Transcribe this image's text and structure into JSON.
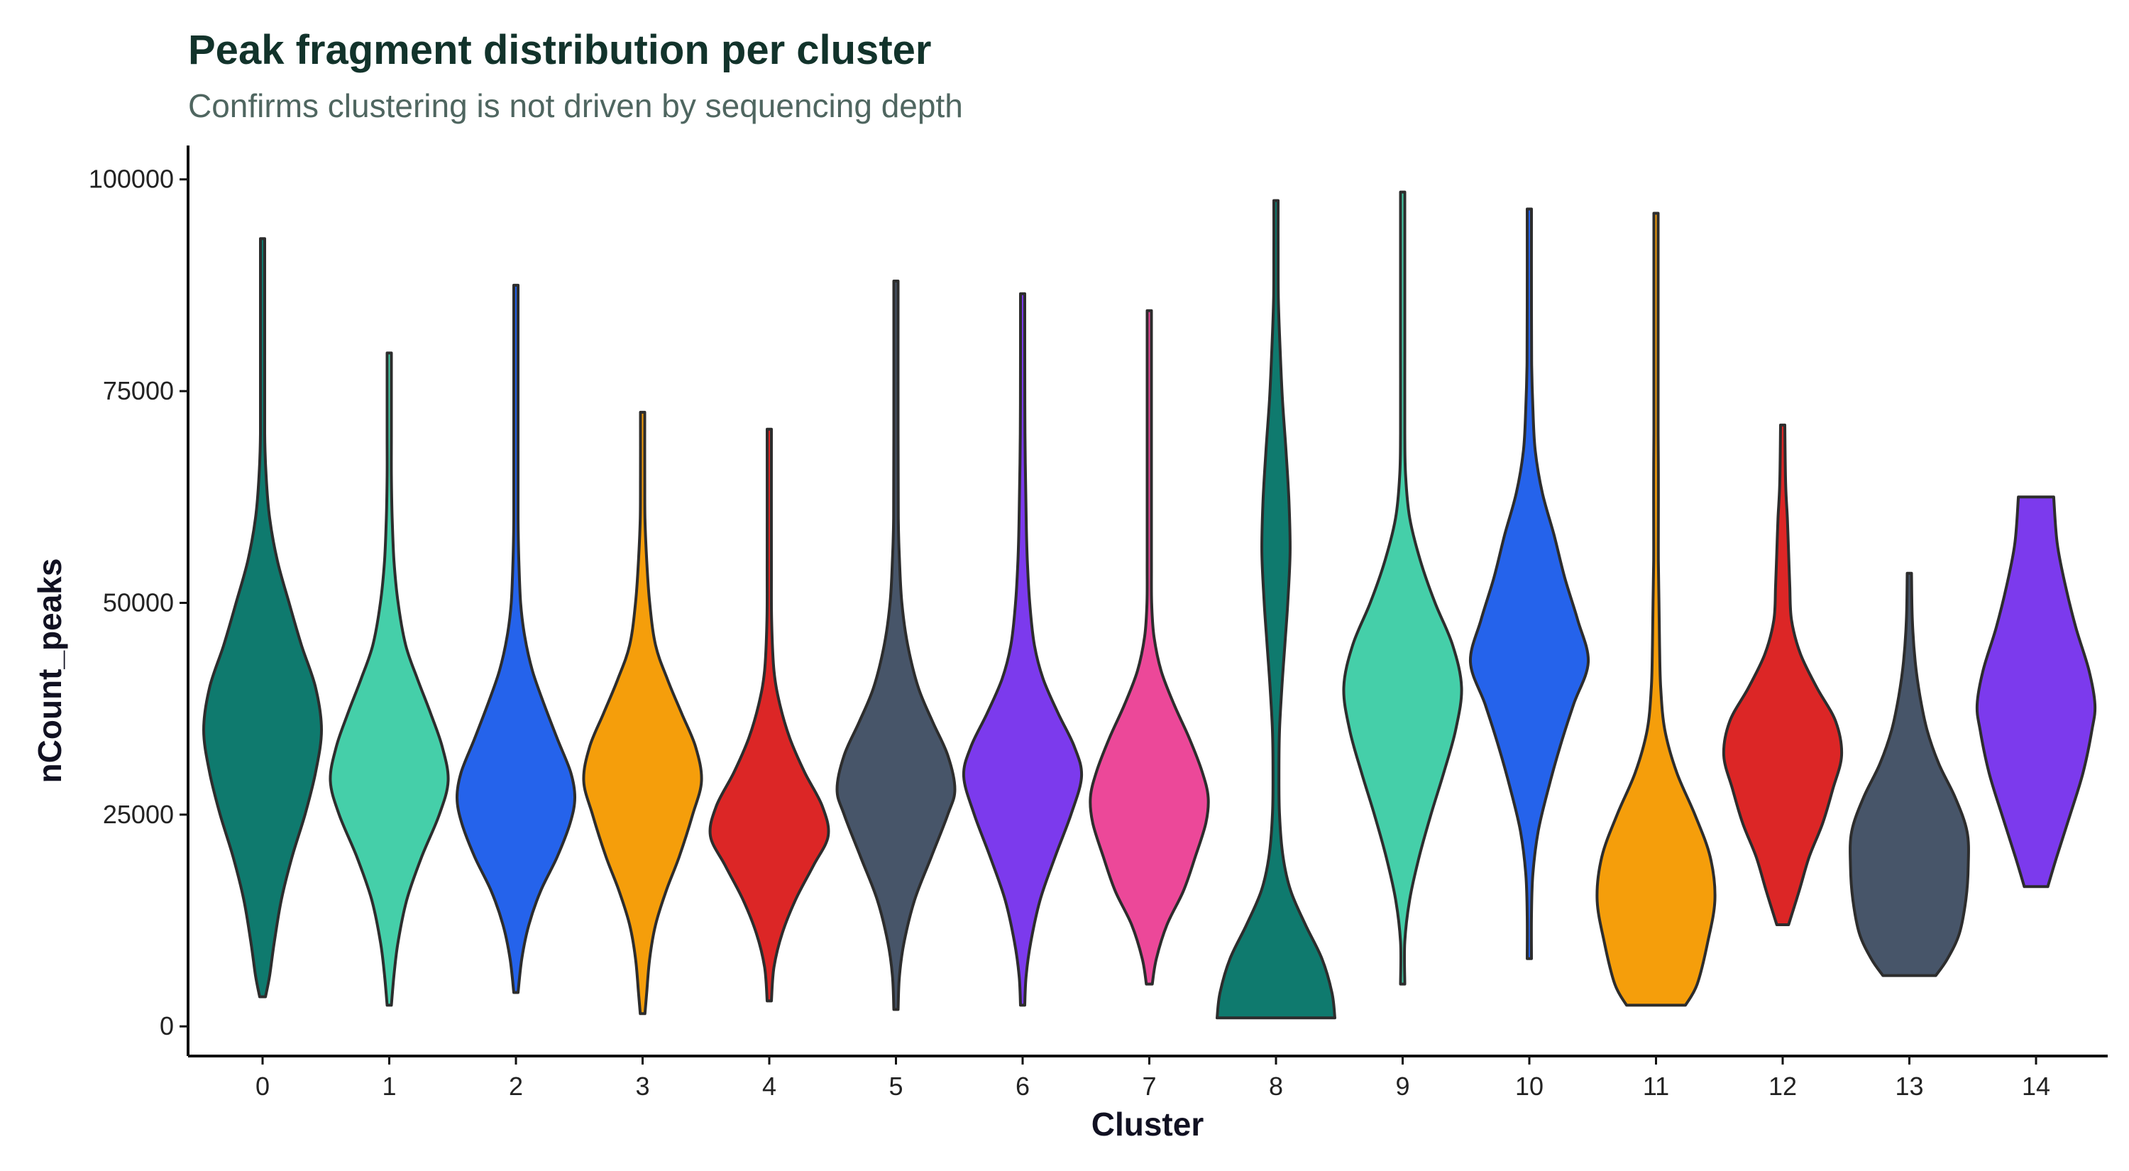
{
  "chart_data": {
    "type": "violin",
    "title": "Peak fragment distribution per cluster",
    "subtitle": "Confirms clustering is not driven by sequencing depth",
    "xlabel": "Cluster",
    "ylabel": "nCount_peaks",
    "ylim": [
      -3500,
      104000
    ],
    "yticks": [
      0,
      25000,
      50000,
      75000,
      100000
    ],
    "ytick_labels": [
      "0",
      "25000",
      "50000",
      "75000",
      "100000"
    ],
    "grid": false,
    "legend": "none",
    "categories": [
      "0",
      "1",
      "2",
      "3",
      "4",
      "5",
      "6",
      "7",
      "8",
      "9",
      "10",
      "11",
      "12",
      "13",
      "14"
    ],
    "violins": [
      {
        "cluster": "0",
        "color": "#0f7a6e",
        "min": 3500,
        "max": 93000,
        "profile": [
          [
            3500,
            0.05
          ],
          [
            6000,
            0.12
          ],
          [
            10000,
            0.2
          ],
          [
            15000,
            0.32
          ],
          [
            20000,
            0.5
          ],
          [
            25000,
            0.72
          ],
          [
            30000,
            0.9
          ],
          [
            35000,
            1.0
          ],
          [
            40000,
            0.9
          ],
          [
            45000,
            0.66
          ],
          [
            50000,
            0.45
          ],
          [
            55000,
            0.25
          ],
          [
            60000,
            0.12
          ],
          [
            65000,
            0.06
          ],
          [
            70000,
            0.03
          ],
          [
            80000,
            0.02
          ],
          [
            93000,
            0.015
          ]
        ]
      },
      {
        "cluster": "1",
        "color": "#45cfa9",
        "min": 2500,
        "max": 79500,
        "profile": [
          [
            2500,
            0.03
          ],
          [
            6000,
            0.08
          ],
          [
            10000,
            0.15
          ],
          [
            15000,
            0.3
          ],
          [
            20000,
            0.55
          ],
          [
            25000,
            0.85
          ],
          [
            29000,
            1.0
          ],
          [
            33000,
            0.9
          ],
          [
            37000,
            0.7
          ],
          [
            41000,
            0.48
          ],
          [
            45000,
            0.28
          ],
          [
            50000,
            0.15
          ],
          [
            55000,
            0.08
          ],
          [
            60000,
            0.05
          ],
          [
            65000,
            0.03
          ],
          [
            70000,
            0.02
          ],
          [
            79500,
            0.01
          ]
        ]
      },
      {
        "cluster": "2",
        "color": "#2563eb",
        "min": 4000,
        "max": 87500,
        "profile": [
          [
            4000,
            0.03
          ],
          [
            8000,
            0.1
          ],
          [
            12000,
            0.22
          ],
          [
            16000,
            0.42
          ],
          [
            20000,
            0.7
          ],
          [
            24000,
            0.92
          ],
          [
            27000,
            1.0
          ],
          [
            30000,
            0.93
          ],
          [
            34000,
            0.7
          ],
          [
            38000,
            0.48
          ],
          [
            42000,
            0.28
          ],
          [
            46000,
            0.15
          ],
          [
            50000,
            0.08
          ],
          [
            55000,
            0.05
          ],
          [
            60000,
            0.03
          ],
          [
            70000,
            0.02
          ],
          [
            87500,
            0.01
          ]
        ]
      },
      {
        "cluster": "3",
        "color": "#f59e0b",
        "min": 1500,
        "max": 72500,
        "profile": [
          [
            1500,
            0.04
          ],
          [
            4000,
            0.07
          ],
          [
            8000,
            0.12
          ],
          [
            12000,
            0.22
          ],
          [
            16000,
            0.4
          ],
          [
            20000,
            0.62
          ],
          [
            25000,
            0.85
          ],
          [
            29000,
            1.0
          ],
          [
            33000,
            0.9
          ],
          [
            37000,
            0.66
          ],
          [
            41000,
            0.42
          ],
          [
            45000,
            0.22
          ],
          [
            50000,
            0.12
          ],
          [
            55000,
            0.07
          ],
          [
            60000,
            0.04
          ],
          [
            65000,
            0.02
          ],
          [
            72500,
            0.01
          ]
        ]
      },
      {
        "cluster": "4",
        "color": "#dc2626",
        "min": 3000,
        "max": 70500,
        "profile": [
          [
            3000,
            0.03
          ],
          [
            7000,
            0.08
          ],
          [
            11000,
            0.22
          ],
          [
            15000,
            0.45
          ],
          [
            19000,
            0.75
          ],
          [
            22500,
            1.0
          ],
          [
            26000,
            0.9
          ],
          [
            30000,
            0.6
          ],
          [
            34000,
            0.35
          ],
          [
            38000,
            0.18
          ],
          [
            42000,
            0.08
          ],
          [
            48000,
            0.04
          ],
          [
            55000,
            0.02
          ],
          [
            70500,
            0.01
          ]
        ]
      },
      {
        "cluster": "5",
        "color": "#475569",
        "min": 2000,
        "max": 88000,
        "profile": [
          [
            2000,
            0.02
          ],
          [
            6000,
            0.06
          ],
          [
            10000,
            0.14
          ],
          [
            15000,
            0.32
          ],
          [
            20000,
            0.6
          ],
          [
            25000,
            0.88
          ],
          [
            28000,
            1.0
          ],
          [
            32000,
            0.88
          ],
          [
            36000,
            0.62
          ],
          [
            40000,
            0.38
          ],
          [
            45000,
            0.2
          ],
          [
            50000,
            0.1
          ],
          [
            55000,
            0.06
          ],
          [
            60000,
            0.04
          ],
          [
            70000,
            0.02
          ],
          [
            88000,
            0.01
          ]
        ]
      },
      {
        "cluster": "6",
        "color": "#7c3aed",
        "min": 2500,
        "max": 86500,
        "profile": [
          [
            2500,
            0.02
          ],
          [
            6000,
            0.06
          ],
          [
            10000,
            0.14
          ],
          [
            15000,
            0.3
          ],
          [
            20000,
            0.55
          ],
          [
            25000,
            0.82
          ],
          [
            29500,
            1.0
          ],
          [
            33000,
            0.88
          ],
          [
            37000,
            0.6
          ],
          [
            41000,
            0.35
          ],
          [
            45000,
            0.2
          ],
          [
            50000,
            0.12
          ],
          [
            55000,
            0.08
          ],
          [
            60000,
            0.06
          ],
          [
            70000,
            0.04
          ],
          [
            80000,
            0.02
          ],
          [
            86500,
            0.01
          ]
        ]
      },
      {
        "cluster": "7",
        "color": "#ec4899",
        "min": 5000,
        "max": 84500,
        "profile": [
          [
            5000,
            0.05
          ],
          [
            8000,
            0.12
          ],
          [
            12000,
            0.3
          ],
          [
            16000,
            0.58
          ],
          [
            20000,
            0.78
          ],
          [
            24000,
            0.96
          ],
          [
            27000,
            1.0
          ],
          [
            30000,
            0.9
          ],
          [
            34000,
            0.68
          ],
          [
            38000,
            0.42
          ],
          [
            42000,
            0.2
          ],
          [
            46000,
            0.08
          ],
          [
            50000,
            0.04
          ],
          [
            55000,
            0.03
          ],
          [
            65000,
            0.02
          ],
          [
            84500,
            0.01
          ]
        ]
      },
      {
        "cluster": "8",
        "color": "#0f7a6e",
        "min": 1000,
        "max": 97500,
        "profile": [
          [
            1000,
            1.0
          ],
          [
            4000,
            0.95
          ],
          [
            8000,
            0.78
          ],
          [
            12000,
            0.5
          ],
          [
            16000,
            0.25
          ],
          [
            20000,
            0.12
          ],
          [
            25000,
            0.06
          ],
          [
            30000,
            0.05
          ],
          [
            35000,
            0.06
          ],
          [
            40000,
            0.1
          ],
          [
            45000,
            0.15
          ],
          [
            50000,
            0.2
          ],
          [
            56000,
            0.24
          ],
          [
            62000,
            0.22
          ],
          [
            68000,
            0.17
          ],
          [
            74000,
            0.11
          ],
          [
            80000,
            0.07
          ],
          [
            86000,
            0.04
          ],
          [
            92000,
            0.02
          ],
          [
            97500,
            0.01
          ]
        ]
      },
      {
        "cluster": "9",
        "color": "#45cfa9",
        "min": 5000,
        "max": 98500,
        "profile": [
          [
            5000,
            0.01
          ],
          [
            10000,
            0.03
          ],
          [
            15000,
            0.12
          ],
          [
            20000,
            0.28
          ],
          [
            25000,
            0.48
          ],
          [
            30000,
            0.7
          ],
          [
            35000,
            0.9
          ],
          [
            40000,
            1.0
          ],
          [
            45000,
            0.85
          ],
          [
            50000,
            0.55
          ],
          [
            55000,
            0.3
          ],
          [
            60000,
            0.12
          ],
          [
            65000,
            0.05
          ],
          [
            70000,
            0.03
          ],
          [
            80000,
            0.02
          ],
          [
            90000,
            0.015
          ],
          [
            98500,
            0.01
          ]
        ]
      },
      {
        "cluster": "10",
        "color": "#2563eb",
        "min": 8000,
        "max": 96500,
        "profile": [
          [
            8000,
            0.01
          ],
          [
            13000,
            0.02
          ],
          [
            18000,
            0.06
          ],
          [
            23000,
            0.15
          ],
          [
            28000,
            0.32
          ],
          [
            33000,
            0.52
          ],
          [
            38000,
            0.75
          ],
          [
            43000,
            1.0
          ],
          [
            48000,
            0.82
          ],
          [
            53000,
            0.6
          ],
          [
            58000,
            0.42
          ],
          [
            63000,
            0.22
          ],
          [
            68000,
            0.1
          ],
          [
            73000,
            0.06
          ],
          [
            78000,
            0.04
          ],
          [
            85000,
            0.02
          ],
          [
            96500,
            0.01
          ]
        ]
      },
      {
        "cluster": "11",
        "color": "#f59e0b",
        "min": 2500,
        "max": 96000,
        "profile": [
          [
            2500,
            0.5
          ],
          [
            5000,
            0.7
          ],
          [
            10000,
            0.88
          ],
          [
            15000,
            1.0
          ],
          [
            20000,
            0.92
          ],
          [
            25000,
            0.66
          ],
          [
            30000,
            0.35
          ],
          [
            35000,
            0.15
          ],
          [
            40000,
            0.08
          ],
          [
            45000,
            0.06
          ],
          [
            50000,
            0.05
          ],
          [
            55000,
            0.04
          ],
          [
            60000,
            0.04
          ],
          [
            65000,
            0.04
          ],
          [
            70000,
            0.03
          ],
          [
            80000,
            0.02
          ],
          [
            96000,
            0.01
          ]
        ]
      },
      {
        "cluster": "12",
        "color": "#dc2626",
        "min": 12000,
        "max": 71000,
        "profile": [
          [
            12000,
            0.1
          ],
          [
            16000,
            0.28
          ],
          [
            20000,
            0.45
          ],
          [
            24000,
            0.68
          ],
          [
            28000,
            0.85
          ],
          [
            32000,
            1.0
          ],
          [
            36000,
            0.9
          ],
          [
            40000,
            0.58
          ],
          [
            44000,
            0.3
          ],
          [
            48000,
            0.15
          ],
          [
            52000,
            0.12
          ],
          [
            56000,
            0.1
          ],
          [
            60000,
            0.08
          ],
          [
            64000,
            0.05
          ],
          [
            71000,
            0.03
          ]
        ]
      },
      {
        "cluster": "13",
        "color": "#475569",
        "min": 6000,
        "max": 53500,
        "profile": [
          [
            6000,
            0.45
          ],
          [
            8000,
            0.65
          ],
          [
            11000,
            0.85
          ],
          [
            15000,
            0.96
          ],
          [
            19000,
            1.0
          ],
          [
            23000,
            0.98
          ],
          [
            27000,
            0.78
          ],
          [
            31000,
            0.5
          ],
          [
            35000,
            0.3
          ],
          [
            39000,
            0.18
          ],
          [
            43000,
            0.1
          ],
          [
            48000,
            0.05
          ],
          [
            53500,
            0.03
          ]
        ]
      },
      {
        "cluster": "14",
        "color": "#7c3aed",
        "min": 16500,
        "max": 62500,
        "profile": [
          [
            16500,
            0.2
          ],
          [
            20000,
            0.35
          ],
          [
            25000,
            0.58
          ],
          [
            30000,
            0.8
          ],
          [
            35000,
            0.95
          ],
          [
            38000,
            1.0
          ],
          [
            42000,
            0.9
          ],
          [
            47000,
            0.68
          ],
          [
            52000,
            0.5
          ],
          [
            57000,
            0.36
          ],
          [
            62500,
            0.3
          ]
        ]
      }
    ]
  }
}
